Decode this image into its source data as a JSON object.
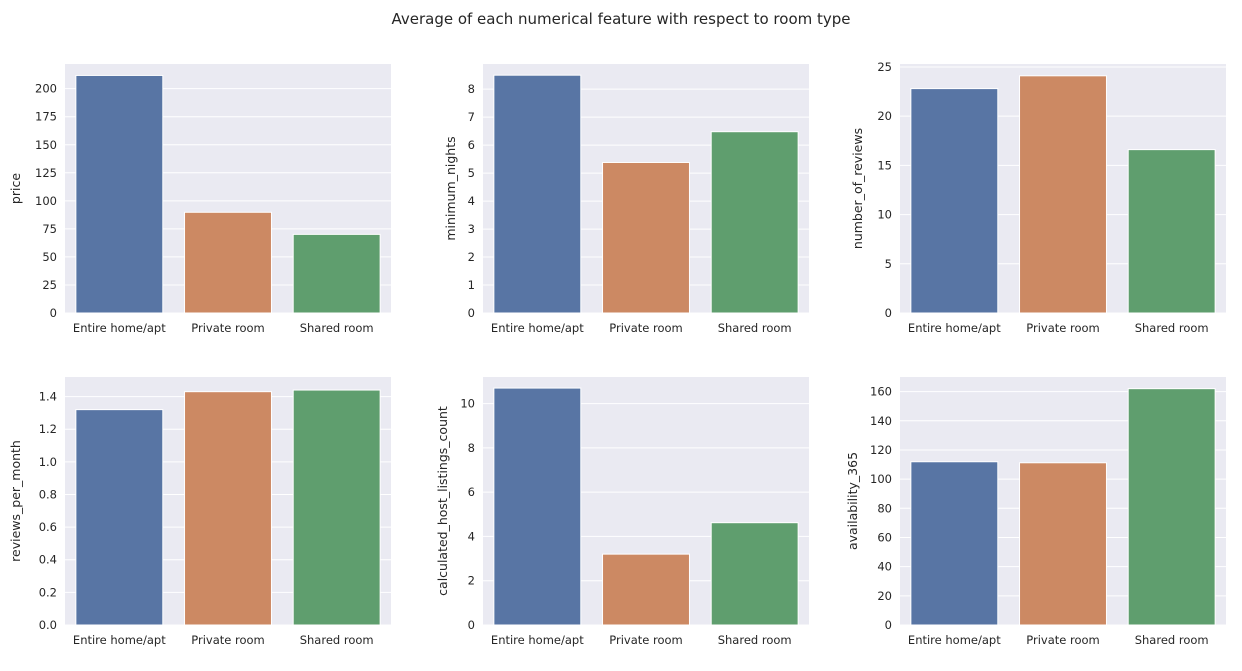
{
  "suptitle": "Average of each numerical feature with respect to room type",
  "colors": {
    "background": "#eaeaf2",
    "grid": "#ffffff",
    "text": "#262626",
    "series": [
      "#5875a4",
      "#cc8963",
      "#5f9e6e"
    ]
  },
  "chart_data": [
    {
      "type": "bar",
      "categories": [
        "Entire home/apt",
        "Private room",
        "Shared room"
      ],
      "values": [
        211.8,
        89.8,
        70.1
      ],
      "ylabel": "price",
      "ylim": [
        0,
        222
      ],
      "yticks": [
        0,
        25,
        50,
        75,
        100,
        125,
        150,
        175,
        200
      ],
      "tick_labels": [
        "0",
        "25",
        "50",
        "75",
        "100",
        "125",
        "150",
        "175",
        "200"
      ],
      "grid": true
    },
    {
      "type": "bar",
      "categories": [
        "Entire home/apt",
        "Private room",
        "Shared room"
      ],
      "values": [
        8.5,
        5.38,
        6.48
      ],
      "ylabel": "minimum_nights",
      "ylim": [
        0,
        8.9
      ],
      "yticks": [
        0,
        1,
        2,
        3,
        4,
        5,
        6,
        7,
        8
      ],
      "tick_labels": [
        "0",
        "1",
        "2",
        "3",
        "4",
        "5",
        "6",
        "7",
        "8"
      ],
      "grid": true
    },
    {
      "type": "bar",
      "categories": [
        "Entire home/apt",
        "Private room",
        "Shared room"
      ],
      "values": [
        22.8,
        24.1,
        16.6
      ],
      "ylabel": "number_of_reviews",
      "ylim": [
        0,
        25.3
      ],
      "yticks": [
        0,
        5,
        10,
        15,
        20,
        25
      ],
      "tick_labels": [
        "0",
        "5",
        "10",
        "15",
        "20",
        "25"
      ],
      "grid": true
    },
    {
      "type": "bar",
      "categories": [
        "Entire home/apt",
        "Private room",
        "Shared room"
      ],
      "values": [
        1.32,
        1.43,
        1.44
      ],
      "ylabel": "reviews_per_month",
      "ylim": [
        0,
        1.52
      ],
      "yticks": [
        0,
        0.2,
        0.4,
        0.6,
        0.8,
        1.0,
        1.2,
        1.4
      ],
      "tick_labels": [
        "0.0",
        "0.2",
        "0.4",
        "0.6",
        "0.8",
        "1.0",
        "1.2",
        "1.4"
      ],
      "grid": true
    },
    {
      "type": "bar",
      "categories": [
        "Entire home/apt",
        "Private room",
        "Shared room"
      ],
      "values": [
        10.7,
        3.2,
        4.62
      ],
      "ylabel": "calculated_host_listings_count",
      "ylim": [
        0,
        11.2
      ],
      "yticks": [
        0,
        2,
        4,
        6,
        8,
        10
      ],
      "tick_labels": [
        "0",
        "2",
        "4",
        "6",
        "8",
        "10"
      ],
      "grid": true
    },
    {
      "type": "bar",
      "categories": [
        "Entire home/apt",
        "Private room",
        "Shared room"
      ],
      "values": [
        111.9,
        111.2,
        162.0
      ],
      "ylabel": "availability_365",
      "ylim": [
        0,
        170
      ],
      "yticks": [
        0,
        20,
        40,
        60,
        80,
        100,
        120,
        140,
        160
      ],
      "tick_labels": [
        "0",
        "20",
        "40",
        "60",
        "80",
        "100",
        "120",
        "140",
        "160"
      ],
      "grid": true
    }
  ]
}
